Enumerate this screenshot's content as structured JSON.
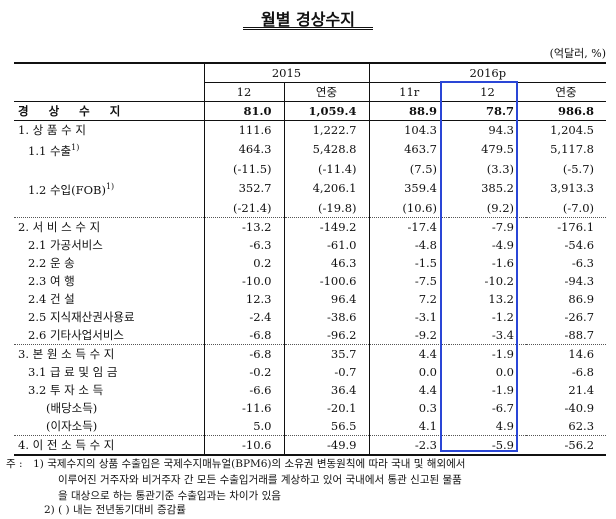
{
  "title": "월별 경상수지",
  "unit": "(억달러, %)",
  "header": {
    "year1": "2015",
    "year2": "2016p",
    "cols": [
      "12",
      "연중",
      "11r",
      "12",
      "연중"
    ]
  },
  "rows": [
    {
      "label": "경 상 수 지",
      "v": [
        "81.0",
        "1,059.4",
        "88.9",
        "78.7",
        "986.8"
      ]
    },
    {
      "label": "1. 상 품 수 지",
      "v": [
        "111.6",
        "1,222.7",
        "104.3",
        "94.3",
        "1,204.5"
      ]
    },
    {
      "label": "1.1 수출",
      "sup": "1)",
      "v": [
        "464.3",
        "5,428.8",
        "463.7",
        "479.5",
        "5,117.8"
      ]
    },
    {
      "label": "",
      "v": [
        "(-11.5)",
        "(-11.4)",
        "(7.5)",
        "(3.3)",
        "(-5.7)"
      ]
    },
    {
      "label": "1.2 수입(FOB)",
      "sup": "1)",
      "v": [
        "352.7",
        "4,206.1",
        "359.4",
        "385.2",
        "3,913.3"
      ]
    },
    {
      "label": "",
      "v": [
        "(-21.4)",
        "(-19.8)",
        "(10.6)",
        "(9.2)",
        "(-7.0)"
      ]
    },
    {
      "label": "2. 서 비 스 수 지",
      "v": [
        "-13.2",
        "-149.2",
        "-17.4",
        "-7.9",
        "-176.1"
      ]
    },
    {
      "label": "2.1 가공서비스",
      "v": [
        "-6.3",
        "-61.0",
        "-4.8",
        "-4.9",
        "-54.6"
      ]
    },
    {
      "label": "2.2 운 송",
      "v": [
        "0.2",
        "46.3",
        "-1.5",
        "-1.6",
        "-6.3"
      ]
    },
    {
      "label": "2.3 여 행",
      "v": [
        "-10.0",
        "-100.6",
        "-7.5",
        "-10.2",
        "-94.3"
      ]
    },
    {
      "label": "2.4 건 설",
      "v": [
        "12.3",
        "96.4",
        "7.2",
        "13.2",
        "86.9"
      ]
    },
    {
      "label": "2.5 지식재산권사용료",
      "v": [
        "-2.4",
        "-38.6",
        "-3.1",
        "-1.2",
        "-26.7"
      ]
    },
    {
      "label": "2.6 기타사업서비스",
      "v": [
        "-6.8",
        "-96.2",
        "-9.2",
        "-3.4",
        "-88.7"
      ]
    },
    {
      "label": "3. 본 원 소 득 수 지",
      "v": [
        "-6.8",
        "35.7",
        "4.4",
        "-1.9",
        "14.6"
      ]
    },
    {
      "label": "3.1 급 료 및 임 금",
      "v": [
        "-0.2",
        "-0.7",
        "0.0",
        "0.0",
        "-6.8"
      ]
    },
    {
      "label": "3.2 투 자 소 득",
      "v": [
        "-6.6",
        "36.4",
        "4.4",
        "-1.9",
        "21.4"
      ]
    },
    {
      "label": "(배당소득)",
      "v": [
        "-11.6",
        "-20.1",
        "0.3",
        "-6.7",
        "-40.9"
      ]
    },
    {
      "label": "(이자소득)",
      "v": [
        "5.0",
        "56.5",
        "4.1",
        "4.9",
        "62.3"
      ]
    },
    {
      "label": "4. 이 전 소 득 수 지",
      "v": [
        "-10.6",
        "-49.9",
        "-2.3",
        "-5.9",
        "-56.2"
      ]
    }
  ],
  "notes": {
    "label": "주 :",
    "n1_num": "1)",
    "n1_line1": "국제수지의 상품 수출입은 국제수지매뉴얼(BPM6)의 소유권 변동원칙에 따라 국내 및 해외에서",
    "n1_line2": "이루어진 거주자와 비거주자 간 모든 수출입거래를 계상하고 있어 국내에서 통관 신고된 물품",
    "n1_line3": "을 대상으로 하는 통관기준 수출입과는 차이가 있음",
    "n2_num": "2)",
    "n2_text": "( ) 내는 전년동기대비 증감률"
  }
}
